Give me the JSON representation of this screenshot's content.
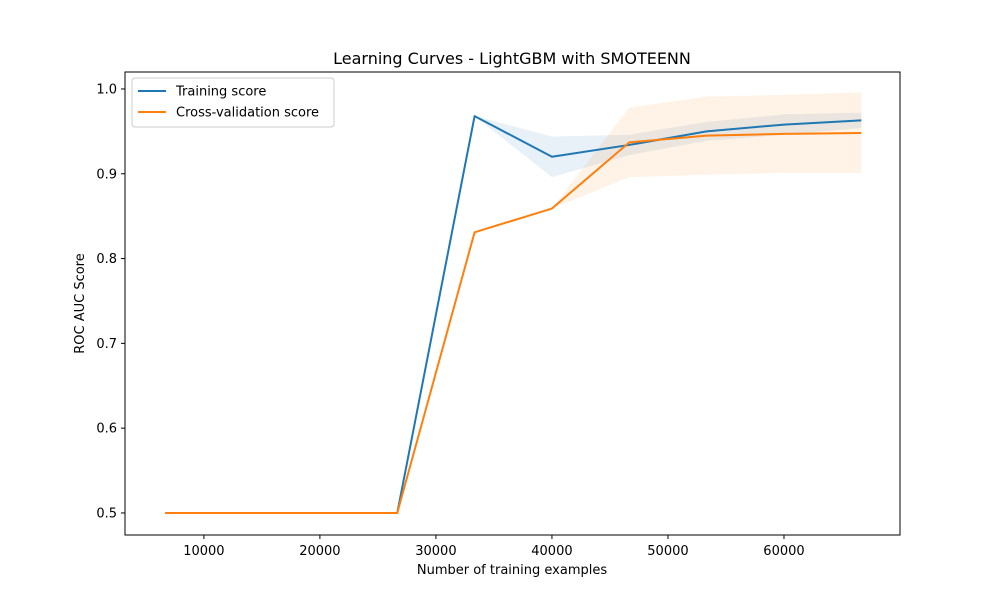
{
  "chart_data": {
    "type": "line",
    "title": "Learning Curves - LightGBM with SMOTEENN",
    "xlabel": "Number of training examples",
    "ylabel": "ROC AUC Score",
    "xlim": [
      3200,
      70000
    ],
    "ylim": [
      0.474,
      1.02
    ],
    "x": [
      6667,
      13333,
      20000,
      26667,
      33333,
      40000,
      46667,
      53333,
      60000,
      66667
    ],
    "xticks": [
      10000,
      20000,
      30000,
      40000,
      50000,
      60000
    ],
    "xtick_labels": [
      "10000",
      "20000",
      "30000",
      "40000",
      "50000",
      "60000"
    ],
    "yticks": [
      0.5,
      0.6,
      0.7,
      0.8,
      0.9,
      1.0
    ],
    "ytick_labels": [
      "0.5",
      "0.6",
      "0.7",
      "0.8",
      "0.9",
      "1.0"
    ],
    "grid": false,
    "legend_position": "top-left",
    "series": [
      {
        "name": "Training score",
        "color": "#1f77b4",
        "band_opacity": 0.1,
        "values": [
          0.5,
          0.5,
          0.5,
          0.5,
          0.968,
          0.92,
          0.934,
          0.95,
          0.958,
          0.963
        ],
        "lower": [
          0.5,
          0.5,
          0.5,
          0.5,
          0.968,
          0.896,
          0.922,
          0.939,
          0.946,
          0.954
        ],
        "upper": [
          0.5,
          0.5,
          0.5,
          0.5,
          0.968,
          0.944,
          0.946,
          0.961,
          0.97,
          0.972
        ]
      },
      {
        "name": "Cross-validation score",
        "color": "#ff7f0e",
        "band_opacity": 0.1,
        "values": [
          0.5,
          0.5,
          0.5,
          0.5,
          0.831,
          0.859,
          0.937,
          0.945,
          0.947,
          0.948
        ],
        "lower": [
          0.5,
          0.5,
          0.5,
          0.5,
          0.831,
          0.859,
          0.896,
          0.899,
          0.901,
          0.901
        ],
        "upper": [
          0.5,
          0.5,
          0.5,
          0.5,
          0.831,
          0.859,
          0.978,
          0.991,
          0.993,
          0.996
        ]
      }
    ]
  }
}
